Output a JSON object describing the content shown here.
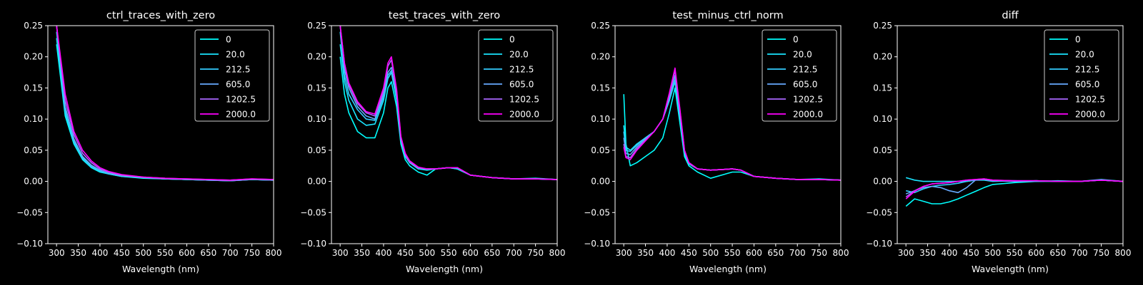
{
  "colors": {
    "background": "#000000",
    "axes": "#ffffff",
    "text": "#ffffff"
  },
  "chart_data": [
    {
      "type": "line",
      "title": "ctrl_traces_with_zero",
      "xlabel": "Wavelength (nm)",
      "ylabel": "",
      "xlim": [
        280,
        800
      ],
      "ylim": [
        -0.1,
        0.25
      ],
      "grid": false,
      "legend_placement": "top-right",
      "x_ticks": [
        "300",
        "350",
        "400",
        "450",
        "500",
        "550",
        "600",
        "650",
        "700",
        "750",
        "800"
      ],
      "y_ticks": [
        "−0.10",
        "−0.05",
        "0.00",
        "0.05",
        "0.10",
        "0.15",
        "0.20",
        "0.25"
      ],
      "x": [
        300,
        320,
        340,
        360,
        380,
        400,
        420,
        450,
        500,
        550,
        600,
        650,
        700,
        750,
        800
      ],
      "series": [
        {
          "name": "0",
          "color": "#00ffff",
          "values": [
            0.22,
            0.105,
            0.06,
            0.035,
            0.022,
            0.015,
            0.012,
            0.008,
            0.005,
            0.004,
            0.003,
            0.002,
            0.002,
            0.003,
            0.002
          ]
        },
        {
          "name": "20.0",
          "color": "#1ae5ff",
          "values": [
            0.23,
            0.11,
            0.062,
            0.036,
            0.023,
            0.016,
            0.012,
            0.008,
            0.006,
            0.004,
            0.003,
            0.002,
            0.001,
            0.003,
            0.002
          ]
        },
        {
          "name": "212.5",
          "color": "#33ccff",
          "values": [
            0.24,
            0.115,
            0.065,
            0.038,
            0.024,
            0.017,
            0.013,
            0.009,
            0.006,
            0.004,
            0.003,
            0.002,
            0.001,
            0.003,
            0.002
          ]
        },
        {
          "name": "605.0",
          "color": "#66aaff",
          "values": [
            0.25,
            0.12,
            0.068,
            0.04,
            0.026,
            0.018,
            0.013,
            0.009,
            0.006,
            0.004,
            0.003,
            0.002,
            0.001,
            0.003,
            0.002
          ]
        },
        {
          "name": "1202.5",
          "color": "#aa66ff",
          "values": [
            0.25,
            0.13,
            0.075,
            0.045,
            0.03,
            0.02,
            0.015,
            0.01,
            0.007,
            0.005,
            0.004,
            0.003,
            0.002,
            0.004,
            0.003
          ]
        },
        {
          "name": "2000.0",
          "color": "#ff00ff",
          "values": [
            0.25,
            0.14,
            0.08,
            0.05,
            0.033,
            0.022,
            0.016,
            0.011,
            0.007,
            0.005,
            0.004,
            0.003,
            0.002,
            0.004,
            0.003
          ]
        }
      ]
    },
    {
      "type": "line",
      "title": "test_traces_with_zero",
      "xlabel": "Wavelength (nm)",
      "ylabel": "",
      "xlim": [
        280,
        800
      ],
      "ylim": [
        -0.1,
        0.25
      ],
      "grid": false,
      "legend_placement": "top-right",
      "x_ticks": [
        "300",
        "350",
        "400",
        "450",
        "500",
        "550",
        "600",
        "650",
        "700",
        "750",
        "800"
      ],
      "y_ticks": [
        "−0.10",
        "−0.05",
        "0.00",
        "0.05",
        "0.10",
        "0.15",
        "0.20",
        "0.25"
      ],
      "x": [
        300,
        310,
        320,
        340,
        360,
        380,
        400,
        410,
        418,
        430,
        440,
        450,
        460,
        480,
        500,
        520,
        550,
        570,
        600,
        650,
        700,
        750,
        800
      ],
      "series": [
        {
          "name": "0",
          "color": "#00ffff",
          "values": [
            0.2,
            0.14,
            0.11,
            0.08,
            0.07,
            0.07,
            0.11,
            0.15,
            0.16,
            0.12,
            0.06,
            0.035,
            0.025,
            0.015,
            0.01,
            0.02,
            0.022,
            0.02,
            0.01,
            0.006,
            0.004,
            0.005,
            0.003
          ]
        },
        {
          "name": "20.0",
          "color": "#1ae5ff",
          "values": [
            0.22,
            0.16,
            0.13,
            0.1,
            0.09,
            0.092,
            0.13,
            0.165,
            0.175,
            0.13,
            0.065,
            0.04,
            0.03,
            0.02,
            0.018,
            0.02,
            0.022,
            0.02,
            0.01,
            0.006,
            0.004,
            0.004,
            0.003
          ]
        },
        {
          "name": "212.5",
          "color": "#33ccff",
          "values": [
            0.24,
            0.17,
            0.14,
            0.115,
            0.1,
            0.098,
            0.135,
            0.17,
            0.178,
            0.135,
            0.065,
            0.04,
            0.03,
            0.02,
            0.02,
            0.02,
            0.022,
            0.022,
            0.01,
            0.006,
            0.004,
            0.004,
            0.003
          ]
        },
        {
          "name": "605.0",
          "color": "#66aaff",
          "values": [
            0.25,
            0.18,
            0.15,
            0.12,
            0.105,
            0.1,
            0.14,
            0.175,
            0.183,
            0.138,
            0.068,
            0.042,
            0.03,
            0.022,
            0.02,
            0.02,
            0.022,
            0.022,
            0.01,
            0.006,
            0.004,
            0.004,
            0.003
          ]
        },
        {
          "name": "1202.5",
          "color": "#aa66ff",
          "values": [
            0.25,
            0.19,
            0.155,
            0.125,
            0.11,
            0.105,
            0.145,
            0.185,
            0.195,
            0.145,
            0.07,
            0.043,
            0.032,
            0.022,
            0.02,
            0.02,
            0.022,
            0.022,
            0.01,
            0.006,
            0.004,
            0.004,
            0.003
          ]
        },
        {
          "name": "2000.0",
          "color": "#ff00ff",
          "values": [
            0.25,
            0.19,
            0.158,
            0.128,
            0.112,
            0.108,
            0.15,
            0.19,
            0.2,
            0.148,
            0.072,
            0.045,
            0.033,
            0.023,
            0.02,
            0.02,
            0.022,
            0.022,
            0.01,
            0.006,
            0.004,
            0.004,
            0.003
          ]
        }
      ]
    },
    {
      "type": "line",
      "title": "test_minus_ctrl_norm",
      "xlabel": "Wavelength (nm)",
      "ylabel": "",
      "xlim": [
        280,
        800
      ],
      "ylim": [
        -0.1,
        0.25
      ],
      "grid": false,
      "legend_placement": "top-right",
      "x_ticks": [
        "300",
        "350",
        "400",
        "450",
        "500",
        "550",
        "600",
        "650",
        "700",
        "750",
        "800"
      ],
      "y_ticks": [
        "−0.10",
        "−0.05",
        "0.00",
        "0.05",
        "0.10",
        "0.15",
        "0.20",
        "0.25"
      ],
      "x": [
        300,
        305,
        315,
        330,
        350,
        370,
        390,
        405,
        418,
        430,
        440,
        450,
        470,
        500,
        550,
        570,
        600,
        650,
        700,
        750,
        800
      ],
      "series": [
        {
          "name": "0",
          "color": "#00ffff",
          "values": [
            0.14,
            0.06,
            0.025,
            0.03,
            0.04,
            0.05,
            0.07,
            0.11,
            0.15,
            0.09,
            0.04,
            0.025,
            0.015,
            0.005,
            0.015,
            0.015,
            0.008,
            0.005,
            0.003,
            0.004,
            0.002
          ]
        },
        {
          "name": "20.0",
          "color": "#1ae5ff",
          "values": [
            0.09,
            0.055,
            0.05,
            0.06,
            0.07,
            0.08,
            0.1,
            0.13,
            0.16,
            0.1,
            0.045,
            0.028,
            0.02,
            0.018,
            0.02,
            0.018,
            0.008,
            0.005,
            0.003,
            0.003,
            0.002
          ]
        },
        {
          "name": "212.5",
          "color": "#33ccff",
          "values": [
            0.08,
            0.05,
            0.048,
            0.058,
            0.07,
            0.08,
            0.1,
            0.13,
            0.163,
            0.1,
            0.045,
            0.028,
            0.02,
            0.018,
            0.02,
            0.018,
            0.008,
            0.005,
            0.003,
            0.003,
            0.002
          ]
        },
        {
          "name": "605.0",
          "color": "#66aaff",
          "values": [
            0.07,
            0.045,
            0.043,
            0.055,
            0.068,
            0.08,
            0.1,
            0.135,
            0.17,
            0.105,
            0.048,
            0.03,
            0.02,
            0.018,
            0.02,
            0.018,
            0.008,
            0.005,
            0.003,
            0.003,
            0.002
          ]
        },
        {
          "name": "1202.5",
          "color": "#aa66ff",
          "values": [
            0.06,
            0.04,
            0.038,
            0.052,
            0.066,
            0.08,
            0.1,
            0.14,
            0.178,
            0.11,
            0.05,
            0.03,
            0.02,
            0.018,
            0.02,
            0.018,
            0.008,
            0.005,
            0.003,
            0.003,
            0.002
          ]
        },
        {
          "name": "2000.0",
          "color": "#ff00ff",
          "values": [
            0.055,
            0.038,
            0.035,
            0.05,
            0.065,
            0.08,
            0.1,
            0.142,
            0.182,
            0.112,
            0.05,
            0.03,
            0.02,
            0.018,
            0.02,
            0.018,
            0.008,
            0.005,
            0.003,
            0.003,
            0.002
          ]
        }
      ]
    },
    {
      "type": "line",
      "title": "diff",
      "xlabel": "Wavelength (nm)",
      "ylabel": "",
      "xlim": [
        280,
        800
      ],
      "ylim": [
        -0.1,
        0.25
      ],
      "grid": false,
      "legend_placement": "top-right",
      "x_ticks": [
        "300",
        "350",
        "400",
        "450",
        "500",
        "550",
        "600",
        "650",
        "700",
        "750",
        "800"
      ],
      "y_ticks": [
        "−0.10",
        "−0.05",
        "0.00",
        "0.05",
        "0.10",
        "0.15",
        "0.20",
        "0.25"
      ],
      "x": [
        300,
        320,
        340,
        360,
        380,
        400,
        420,
        440,
        460,
        480,
        500,
        550,
        600,
        650,
        700,
        750,
        800
      ],
      "series": [
        {
          "name": "0",
          "color": "#00ffff",
          "values": [
            -0.04,
            -0.028,
            -0.032,
            -0.036,
            -0.036,
            -0.033,
            -0.028,
            -0.022,
            -0.016,
            -0.01,
            -0.005,
            -0.002,
            0.0,
            0.001,
            0.0,
            0.003,
            0.0
          ]
        },
        {
          "name": "20.0",
          "color": "#1ae5ff",
          "values": [
            0.006,
            0.002,
            0.0,
            0.0,
            0.0,
            0.0,
            0.0,
            0.0,
            0.002,
            0.002,
            0.0,
            0.001,
            0.0,
            0.0,
            0.0,
            0.002,
            0.0
          ]
        },
        {
          "name": "212.5",
          "color": "#33ccff",
          "values": [
            -0.015,
            -0.018,
            -0.012,
            -0.008,
            -0.006,
            -0.005,
            -0.003,
            0.0,
            0.002,
            0.003,
            0.001,
            0.0,
            0.001,
            0.0,
            0.0,
            0.002,
            0.0
          ]
        },
        {
          "name": "605.0",
          "color": "#66aaff",
          "values": [
            -0.02,
            -0.015,
            -0.01,
            -0.008,
            -0.01,
            -0.015,
            -0.018,
            -0.01,
            0.002,
            0.003,
            0.001,
            0.0,
            0.001,
            0.0,
            0.0,
            0.002,
            0.0
          ]
        },
        {
          "name": "1202.5",
          "color": "#aa66ff",
          "values": [
            -0.025,
            -0.015,
            -0.008,
            -0.004,
            -0.003,
            -0.002,
            0.0,
            0.002,
            0.003,
            0.004,
            0.002,
            0.001,
            0.001,
            0.0,
            0.0,
            0.002,
            0.0
          ]
        },
        {
          "name": "2000.0",
          "color": "#ff00ff",
          "values": [
            -0.028,
            -0.016,
            -0.008,
            -0.004,
            -0.003,
            -0.002,
            0.0,
            0.002,
            0.003,
            0.004,
            0.002,
            0.001,
            0.001,
            0.0,
            0.0,
            0.002,
            0.0
          ]
        }
      ]
    }
  ]
}
